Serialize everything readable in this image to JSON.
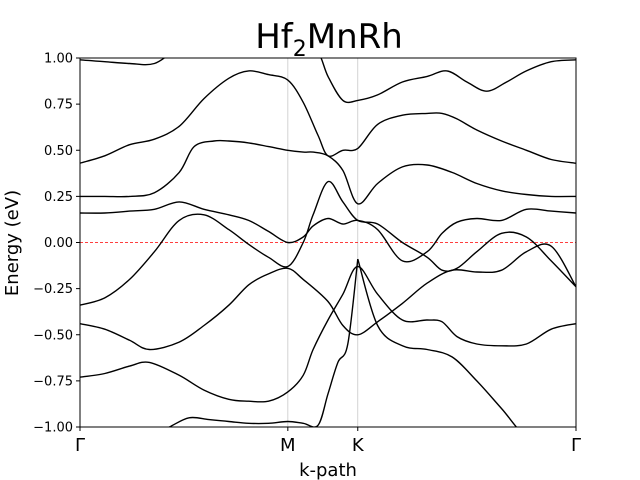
{
  "chart_data": {
    "type": "line",
    "title": "Hf",
    "title_sub": "2",
    "title_rest": "MnRh",
    "xlabel": "k-path",
    "ylabel": "Energy (eV)",
    "ylim": [
      -1.0,
      1.0
    ],
    "xlim": [
      0,
      1
    ],
    "yticks": [
      -1.0,
      -0.75,
      -0.5,
      -0.25,
      0.0,
      0.25,
      0.5,
      0.75,
      1.0
    ],
    "ytick_labels": [
      "−1.00",
      "−0.75",
      "−0.50",
      "−0.25",
      "0.00",
      "0.25",
      "0.50",
      "0.75",
      "1.00"
    ],
    "kpoints": [
      {
        "label": "Γ",
        "x": 0.0
      },
      {
        "label": "M",
        "x": 0.419
      },
      {
        "label": "K",
        "x": 0.56
      },
      {
        "label": "Γ",
        "x": 1.0
      }
    ],
    "fermi_level": 0.0,
    "fermi_color": "#ff0000",
    "band_color": "#000000",
    "series": [
      {
        "x": [
          0,
          0.05,
          0.1,
          0.14,
          0.2,
          0.25,
          0.3,
          0.34,
          0.38,
          0.419,
          0.45,
          0.47,
          0.5,
          0.53,
          0.56,
          0.6,
          0.65,
          0.7,
          0.73,
          0.76,
          0.8,
          0.85,
          0.9,
          0.95,
          1.0
        ],
        "values": [
          -0.73,
          -0.71,
          -0.67,
          -0.65,
          -0.72,
          -0.8,
          -0.85,
          -0.86,
          -0.86,
          -0.81,
          -0.72,
          -0.58,
          -0.42,
          -0.28,
          -0.13,
          -0.28,
          -0.42,
          -0.42,
          -0.43,
          -0.51,
          -0.55,
          -0.56,
          -0.55,
          -0.47,
          -0.44
        ]
      },
      {
        "x": [
          0,
          0.05,
          0.1,
          0.14,
          0.2,
          0.25,
          0.3,
          0.34,
          0.38,
          0.419,
          0.45,
          0.5,
          0.53,
          0.56,
          0.6,
          0.65,
          0.7,
          0.75,
          0.8,
          0.85,
          0.9,
          0.95,
          1.0
        ],
        "values": [
          -0.44,
          -0.47,
          -0.53,
          -0.58,
          -0.54,
          -0.45,
          -0.34,
          -0.23,
          -0.17,
          -0.14,
          -0.2,
          -0.32,
          -0.45,
          -0.5,
          -0.43,
          -0.33,
          -0.22,
          -0.15,
          -0.16,
          -0.15,
          -0.05,
          -0.02,
          -0.24
        ]
      },
      {
        "x": [
          0,
          0.05,
          0.1,
          0.15,
          0.2,
          0.25,
          0.3,
          0.34,
          0.38,
          0.419,
          0.45,
          0.47,
          0.5,
          0.53,
          0.56,
          0.6,
          0.65,
          0.7,
          0.73,
          0.76,
          0.8,
          0.85,
          0.9,
          0.95,
          1.0
        ],
        "values": [
          -0.34,
          -0.3,
          -0.2,
          -0.05,
          0.12,
          0.15,
          0.07,
          -0.01,
          -0.08,
          -0.13,
          0.0,
          0.15,
          0.33,
          0.22,
          0.12,
          0.1,
          0.0,
          -0.08,
          -0.15,
          -0.14,
          -0.05,
          0.05,
          0.03,
          -0.1,
          -0.24
        ]
      },
      {
        "x": [
          0,
          0.05,
          0.1,
          0.15,
          0.2,
          0.25,
          0.3,
          0.34,
          0.38,
          0.419,
          0.45,
          0.47,
          0.5,
          0.53,
          0.56,
          0.6,
          0.65,
          0.7,
          0.73,
          0.76,
          0.8,
          0.85,
          0.9,
          0.95,
          1.0
        ],
        "values": [
          0.16,
          0.16,
          0.17,
          0.18,
          0.22,
          0.18,
          0.15,
          0.12,
          0.06,
          0.0,
          0.03,
          0.09,
          0.13,
          0.1,
          0.12,
          0.07,
          -0.1,
          -0.05,
          0.05,
          0.11,
          0.13,
          0.12,
          0.18,
          0.17,
          0.16
        ]
      },
      {
        "x": [
          0,
          0.05,
          0.1,
          0.15,
          0.2,
          0.23,
          0.27,
          0.3,
          0.34,
          0.38,
          0.419,
          0.45,
          0.47,
          0.5,
          0.53,
          0.56,
          0.6,
          0.65,
          0.7,
          0.75,
          0.8,
          0.85,
          0.9,
          0.95,
          1.0
        ],
        "values": [
          0.25,
          0.25,
          0.25,
          0.27,
          0.38,
          0.52,
          0.55,
          0.55,
          0.54,
          0.52,
          0.5,
          0.49,
          0.49,
          0.47,
          0.39,
          0.21,
          0.32,
          0.41,
          0.42,
          0.38,
          0.32,
          0.28,
          0.26,
          0.25,
          0.25
        ]
      },
      {
        "x": [
          0,
          0.05,
          0.1,
          0.15,
          0.2,
          0.25,
          0.3,
          0.34,
          0.38,
          0.419,
          0.45,
          0.48,
          0.5,
          0.53,
          0.56,
          0.6,
          0.65,
          0.7,
          0.73,
          0.76,
          0.8,
          0.85,
          0.9,
          0.95,
          1.0
        ],
        "values": [
          0.43,
          0.47,
          0.53,
          0.56,
          0.63,
          0.78,
          0.89,
          0.93,
          0.91,
          0.88,
          0.76,
          0.58,
          0.47,
          0.5,
          0.51,
          0.64,
          0.69,
          0.7,
          0.7,
          0.67,
          0.61,
          0.55,
          0.5,
          0.45,
          0.43
        ]
      },
      {
        "x": [
          0,
          0.05,
          0.1,
          0.15,
          0.2,
          0.25,
          0.3,
          0.34,
          0.38,
          0.419,
          0.45,
          0.48,
          0.5,
          0.53,
          0.56,
          0.6,
          0.65,
          0.7,
          0.74,
          0.78,
          0.82,
          0.86,
          0.9,
          0.95,
          1.0
        ],
        "values": [
          0.99,
          0.98,
          0.97,
          0.97,
          1.05,
          1.05,
          1.05,
          1.05,
          1.05,
          1.05,
          1.05,
          1.03,
          0.9,
          0.77,
          0.77,
          0.8,
          0.87,
          0.9,
          0.93,
          0.87,
          0.82,
          0.87,
          0.93,
          0.98,
          0.99
        ]
      },
      {
        "x": [
          0.14,
          0.18,
          0.22,
          0.26,
          0.3,
          0.34,
          0.38,
          0.419,
          0.45,
          0.48,
          0.5,
          0.52,
          0.54,
          0.56
        ],
        "values": [
          -1.05,
          -1.0,
          -0.95,
          -0.96,
          -0.97,
          -0.98,
          -0.98,
          -0.97,
          -0.98,
          -0.99,
          -0.82,
          -0.65,
          -0.55,
          -0.09
        ]
      },
      {
        "x": [
          0.56,
          0.6,
          0.65,
          0.7,
          0.75,
          0.8,
          0.85,
          0.9,
          0.95
        ],
        "values": [
          -0.09,
          -0.45,
          -0.56,
          -0.58,
          -0.62,
          -0.75,
          -0.9,
          -1.05,
          -1.05
        ]
      }
    ]
  }
}
